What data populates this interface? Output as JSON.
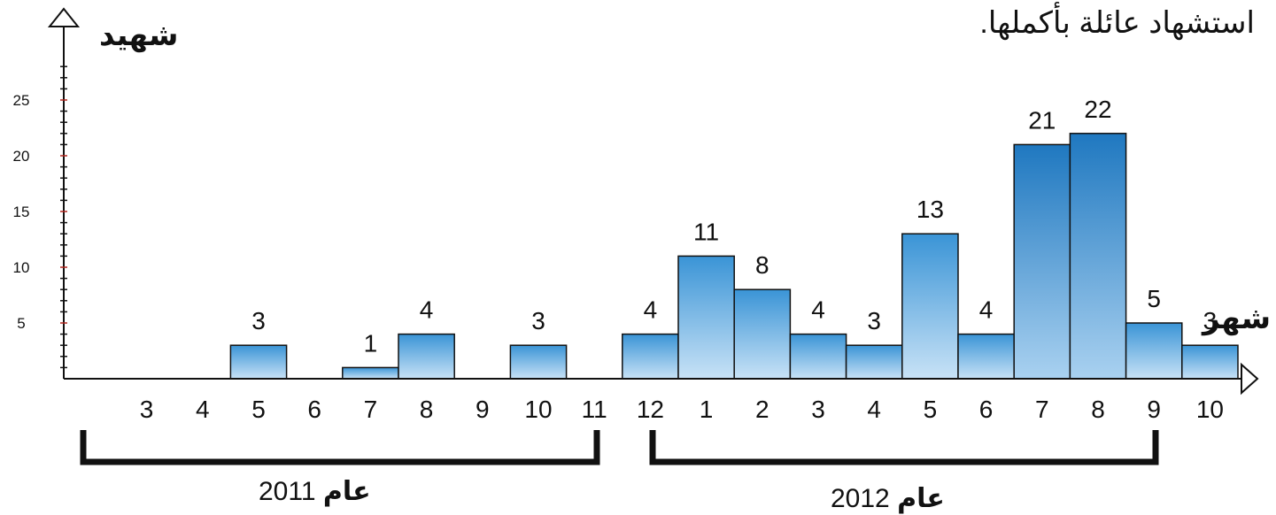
{
  "chart_data": {
    "type": "bar",
    "title": "استشهاد عائلة بأكملها.",
    "ylabel": "شهيد",
    "xlabel": "شهر",
    "ylim": [
      0,
      28
    ],
    "yticks": [
      5,
      10,
      15,
      20,
      25
    ],
    "categories": [
      "3",
      "4",
      "5",
      "6",
      "7",
      "8",
      "9",
      "10",
      "11",
      "12",
      "1",
      "2",
      "3",
      "4",
      "5",
      "6",
      "7",
      "8",
      "9",
      "10"
    ],
    "values": [
      0,
      0,
      3,
      0,
      1,
      4,
      0,
      3,
      0,
      4,
      11,
      8,
      4,
      3,
      13,
      4,
      21,
      22,
      5,
      3
    ],
    "groups": [
      {
        "label_word": "عام",
        "label_year": "2011",
        "from": 0,
        "to": 9
      },
      {
        "label_word": "عام",
        "label_year": "2012",
        "from": 10,
        "to": 19
      }
    ],
    "grid": false,
    "legend": "none"
  }
}
